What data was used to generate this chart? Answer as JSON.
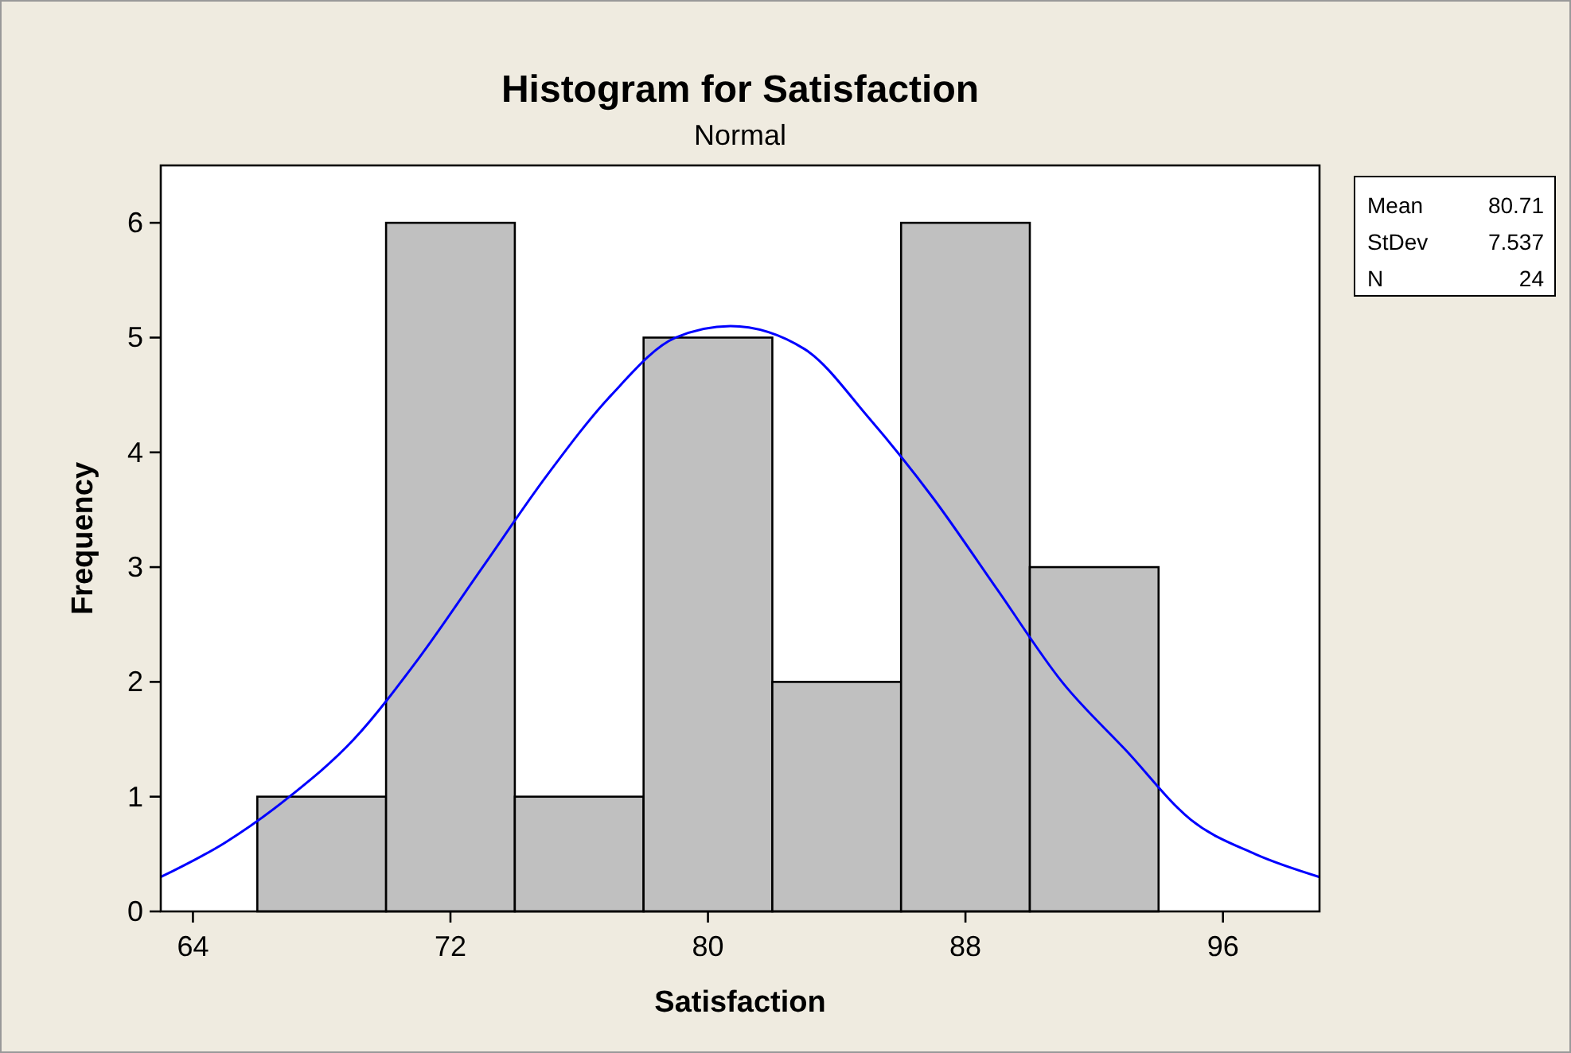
{
  "chart_data": {
    "type": "histogram",
    "title": "Histogram for Satisfaction",
    "subtitle": "Normal",
    "xlabel": "Satisfaction",
    "ylabel": "Frequency",
    "xlim": [
      63,
      99
    ],
    "xticks": [
      64,
      72,
      80,
      88,
      96
    ],
    "ylim": [
      0,
      6.5
    ],
    "yticks": [
      0,
      1,
      2,
      3,
      4,
      5,
      6
    ],
    "grid": false,
    "marker": "none",
    "line_style": "solid",
    "series": [
      {
        "color": "#c0c0c0",
        "bins": [
          66,
          70,
          74,
          78,
          82,
          86,
          90,
          94
        ],
        "values": [
          1,
          6,
          1,
          5,
          2,
          6,
          3
        ]
      },
      {
        "type": "line",
        "color": "#0000ff",
        "x": [
          63,
          65,
          67,
          69,
          71,
          73,
          75,
          77,
          79,
          80.7,
          83,
          85,
          87,
          89,
          91,
          93,
          95,
          97,
          99
        ],
        "values": [
          0.3,
          0.6,
          1.0,
          1.5,
          2.2,
          3.0,
          3.8,
          4.5,
          5.0,
          5.1,
          4.9,
          4.3,
          3.6,
          2.8,
          2.0,
          1.4,
          0.8,
          0.5,
          0.3
        ]
      }
    ],
    "annotations": [
      "Mean 80.71",
      "StDev 7.537",
      "N 24"
    ]
  }
}
